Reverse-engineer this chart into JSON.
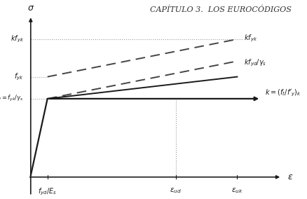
{
  "title": "CAPÍTULO 3.  LOS EUROCÓDIGOS",
  "title_fontsize": 8,
  "title_style": "italic",
  "fyd_Es": 0.12,
  "eps_ud": 0.58,
  "eps_uk": 0.8,
  "fyd_level": 0.42,
  "fyk_level": 0.56,
  "kfyd_level": 0.66,
  "kfyk_level": 0.8,
  "line_color": "#1a1a1a",
  "dashed_color": "#444444",
  "dotted_color": "#999999",
  "xlim": [
    -0.05,
    1.05
  ],
  "ylim": [
    -0.22,
    1.05
  ],
  "fig_width": 4.38,
  "fig_height": 2.84,
  "dpi": 100
}
